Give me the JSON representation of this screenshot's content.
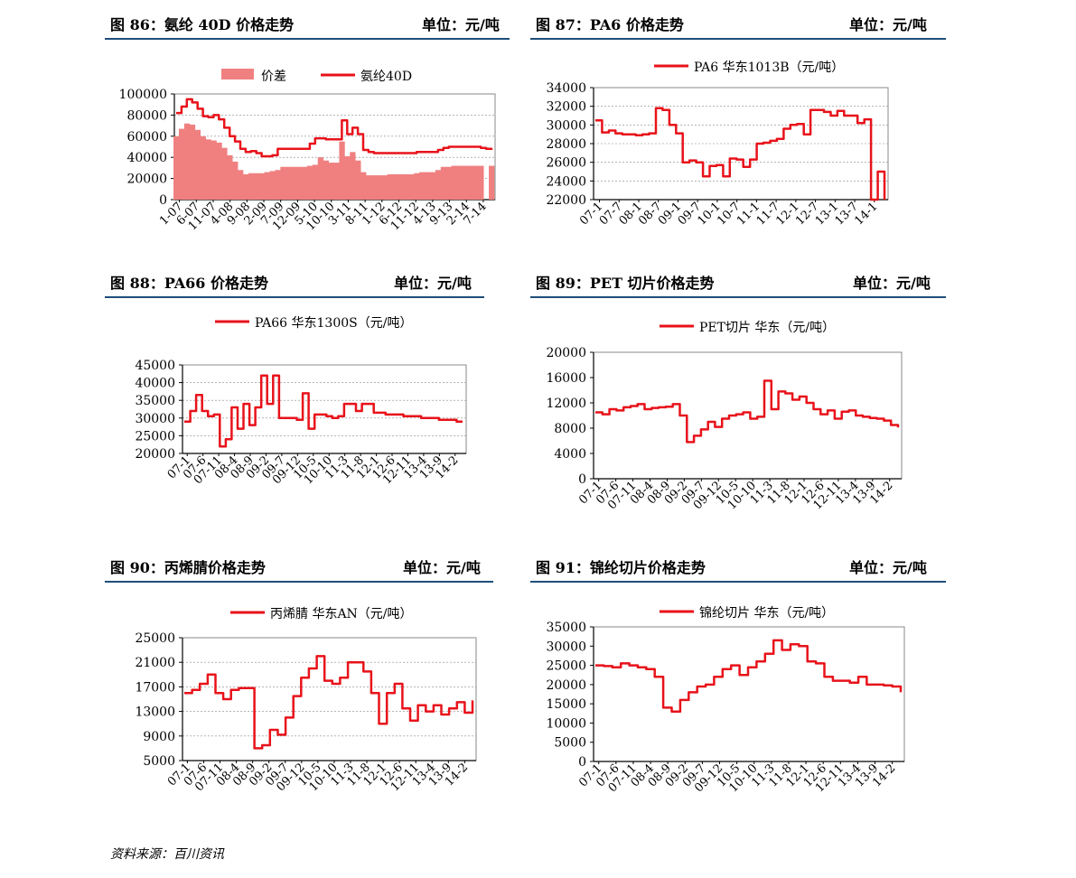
{
  "panels": [
    {
      "title": "图 86：氨纶 40D 价格走势",
      "unit": "单位：元/吨"
    },
    {
      "title": "图 87：PA6 价格走势",
      "unit": "单位：元/吨"
    },
    {
      "title": "图 88：PA66 价格走势",
      "unit": "单位：元/吨"
    },
    {
      "title": "图 89：PET 切片价格走势",
      "unit": "单位：元/吨"
    },
    {
      "title": "图 90：丙烯腈价格走势",
      "unit": "单位：元/吨"
    },
    {
      "title": "图 91：锦纶切片价格走势",
      "unit": "单位：元/吨"
    }
  ],
  "source": "资料来源：百川资讯",
  "colors": {
    "line": "#e8121a",
    "area": "#f08080",
    "rule": "#1f4e79"
  },
  "chart_data": [
    {
      "type": "area+line",
      "legend": [
        "价差",
        "氨纶40D"
      ],
      "legend_position": "top",
      "ylim": [
        0,
        100000
      ],
      "yticks": [
        "0",
        "20000",
        "40000",
        "60000",
        "80000",
        "100000"
      ],
      "xticks": [
        "1-07",
        "6-07",
        "11-07",
        "4-08",
        "9-08",
        "2-09",
        "7-09",
        "12-09",
        "5-10",
        "10-10",
        "3-11",
        "8-11",
        "1-12",
        "6-12",
        "11-12",
        "4-13",
        "9-13",
        "2-14",
        "7-14"
      ],
      "grid": true,
      "series": [
        {
          "name": "价差",
          "style": "area",
          "values": [
            60000,
            67000,
            72000,
            71000,
            66000,
            60000,
            57000,
            56000,
            54000,
            49000,
            42000,
            36000,
            28000,
            24000,
            25000,
            25000,
            25000,
            26000,
            27000,
            28000,
            31000,
            31000,
            31000,
            31000,
            31000,
            32000,
            33000,
            40000,
            37000,
            35000,
            35000,
            55000,
            41000,
            45000,
            37000,
            26000,
            23000,
            23000,
            23000,
            23000,
            24000,
            24000,
            24000,
            24000,
            24000,
            25000,
            26000,
            26000,
            26000,
            28000,
            31000,
            31000,
            32000,
            32000,
            32000,
            32000,
            32000,
            32000,
            0,
            32000
          ]
        },
        {
          "name": "氨纶40D",
          "style": "line",
          "values": [
            82000,
            88000,
            95000,
            92000,
            86000,
            79000,
            78000,
            80000,
            76000,
            68000,
            60000,
            55000,
            48000,
            45000,
            46000,
            44000,
            41000,
            41000,
            42000,
            48000,
            48000,
            48000,
            48000,
            48000,
            48000,
            53000,
            58000,
            58000,
            57000,
            57000,
            57000,
            75000,
            62000,
            68000,
            62000,
            47000,
            45000,
            44000,
            44000,
            44000,
            44000,
            44000,
            44000,
            44000,
            44000,
            45000,
            45000,
            45000,
            45000,
            47000,
            49000,
            50000,
            50000,
            50000,
            50000,
            50000,
            50000,
            49000,
            48000,
            47000
          ]
        }
      ]
    },
    {
      "type": "line",
      "legend": [
        "PA6  华东1013B（元/吨）"
      ],
      "legend_position": "top",
      "ylim": [
        22000,
        34000
      ],
      "yticks": [
        "22000",
        "24000",
        "26000",
        "28000",
        "30000",
        "32000",
        "34000"
      ],
      "xticks": [
        "07-1",
        "07-7",
        "08-1",
        "08-7",
        "09-1",
        "09-7",
        "10-1",
        "10-7",
        "11-1",
        "11-7",
        "12-1",
        "12-7",
        "13-1",
        "13-7",
        "14-1"
      ],
      "grid": true,
      "series": [
        {
          "name": "PA6  华东1013B（元/吨）",
          "values": [
            30500,
            29200,
            29400,
            29100,
            29000,
            29000,
            28900,
            29000,
            29100,
            31800,
            31600,
            30000,
            29100,
            26000,
            26200,
            26000,
            24500,
            25600,
            25700,
            24500,
            26400,
            26300,
            25500,
            26300,
            28000,
            28100,
            28300,
            28500,
            29600,
            30000,
            30100,
            29000,
            31600,
            31600,
            31400,
            31000,
            31500,
            31000,
            31000,
            30200,
            30600,
            22000,
            25000,
            22000
          ]
        }
      ]
    },
    {
      "type": "line",
      "legend": [
        "PA66  华东1300S（元/吨）"
      ],
      "legend_position": "top",
      "ylim": [
        20000,
        45000
      ],
      "yticks": [
        "20000",
        "25000",
        "30000",
        "35000",
        "40000",
        "45000"
      ],
      "xticks": [
        "07-1",
        "07-6",
        "07-11",
        "08-4",
        "08-9",
        "09-2",
        "09-7",
        "09-12",
        "10-5",
        "10-10",
        "11-3",
        "11-8",
        "12-1",
        "12-6",
        "12-11",
        "13-4",
        "13-9",
        "14-2"
      ],
      "grid": true,
      "series": [
        {
          "name": "PA66  华东1300S（元/吨）",
          "values": [
            29000,
            32000,
            36500,
            32000,
            30500,
            31000,
            22000,
            24000,
            33000,
            27000,
            34000,
            28000,
            33000,
            42000,
            34000,
            42000,
            30000,
            30000,
            30000,
            29500,
            37000,
            27000,
            31000,
            31000,
            30500,
            30000,
            30500,
            34000,
            34000,
            32000,
            34000,
            34000,
            31500,
            31500,
            31000,
            31000,
            31000,
            30500,
            30500,
            30500,
            30000,
            30000,
            30000,
            29500,
            29500,
            29500,
            29000,
            29000
          ]
        }
      ]
    },
    {
      "type": "line",
      "legend": [
        "PET切片  华东（元/吨）"
      ],
      "legend_position": "top",
      "ylim": [
        0,
        20000
      ],
      "yticks": [
        "0",
        "4000",
        "8000",
        "12000",
        "16000",
        "20000"
      ],
      "xticks": [
        "07-1",
        "07-6",
        "07-11",
        "08-4",
        "08-9",
        "09-2",
        "09-7",
        "09-12",
        "10-5",
        "10-10",
        "11-3",
        "11-8",
        "12-1",
        "12-6",
        "12-11",
        "13-4",
        "13-9",
        "14-2"
      ],
      "grid": false,
      "series": [
        {
          "name": "PET切片  华东（元/吨）",
          "values": [
            10500,
            10200,
            11000,
            10800,
            11300,
            11500,
            11800,
            11000,
            11200,
            11300,
            11400,
            11800,
            10000,
            5800,
            6800,
            7800,
            9000,
            8200,
            9500,
            10000,
            10200,
            10500,
            9500,
            9800,
            15500,
            11000,
            13800,
            13500,
            12500,
            13000,
            12000,
            11000,
            10200,
            10800,
            9500,
            10600,
            10800,
            10000,
            9800,
            9600,
            9500,
            9200,
            8500,
            8100
          ]
        }
      ]
    },
    {
      "type": "line",
      "legend": [
        "丙烯腈  华东AN（元/吨）"
      ],
      "legend_position": "top",
      "ylim": [
        5000,
        25000
      ],
      "yticks": [
        "5000",
        "9000",
        "13000",
        "17000",
        "21000",
        "25000"
      ],
      "xticks": [
        "07-1",
        "07-6",
        "07-11",
        "08-4",
        "08-9",
        "09-2",
        "09-7",
        "09-12",
        "10-5",
        "10-10",
        "11-3",
        "11-8",
        "12-1",
        "12-6",
        "12-11",
        "13-4",
        "13-9",
        "14-2"
      ],
      "grid": true,
      "series": [
        {
          "name": "丙烯腈  华东AN（元/吨）",
          "values": [
            16000,
            16500,
            17500,
            19000,
            16000,
            15000,
            16500,
            16800,
            16800,
            7000,
            7500,
            10000,
            9200,
            12000,
            15500,
            18500,
            20000,
            22000,
            18000,
            17500,
            18500,
            21000,
            21000,
            19500,
            16000,
            11000,
            16000,
            17500,
            13500,
            11500,
            14000,
            13000,
            14000,
            12500,
            13500,
            14500,
            12800,
            14800
          ]
        }
      ]
    },
    {
      "type": "line",
      "legend": [
        "锦纶切片  华东（元/吨）"
      ],
      "legend_position": "top",
      "ylim": [
        0,
        35000
      ],
      "yticks": [
        "0",
        "5000",
        "10000",
        "15000",
        "20000",
        "25000",
        "30000",
        "35000"
      ],
      "xticks": [
        "07-1",
        "07-6",
        "07-11",
        "08-4",
        "08-9",
        "09-2",
        "09-7",
        "09-12",
        "10-5",
        "10-10",
        "11-3",
        "11-8",
        "12-1",
        "12-6",
        "12-11",
        "13-4",
        "13-9",
        "14-2"
      ],
      "grid": false,
      "series": [
        {
          "name": "锦纶切片  华东（元/吨）",
          "values": [
            25000,
            24800,
            24500,
            25500,
            25000,
            24500,
            24000,
            22000,
            14000,
            13000,
            16000,
            18000,
            19500,
            20000,
            22000,
            24000,
            25000,
            22500,
            24500,
            26000,
            28000,
            31500,
            29000,
            30500,
            30000,
            26000,
            25500,
            22000,
            21000,
            21000,
            20500,
            22000,
            20000,
            20000,
            19800,
            19500,
            18000
          ]
        }
      ]
    }
  ]
}
